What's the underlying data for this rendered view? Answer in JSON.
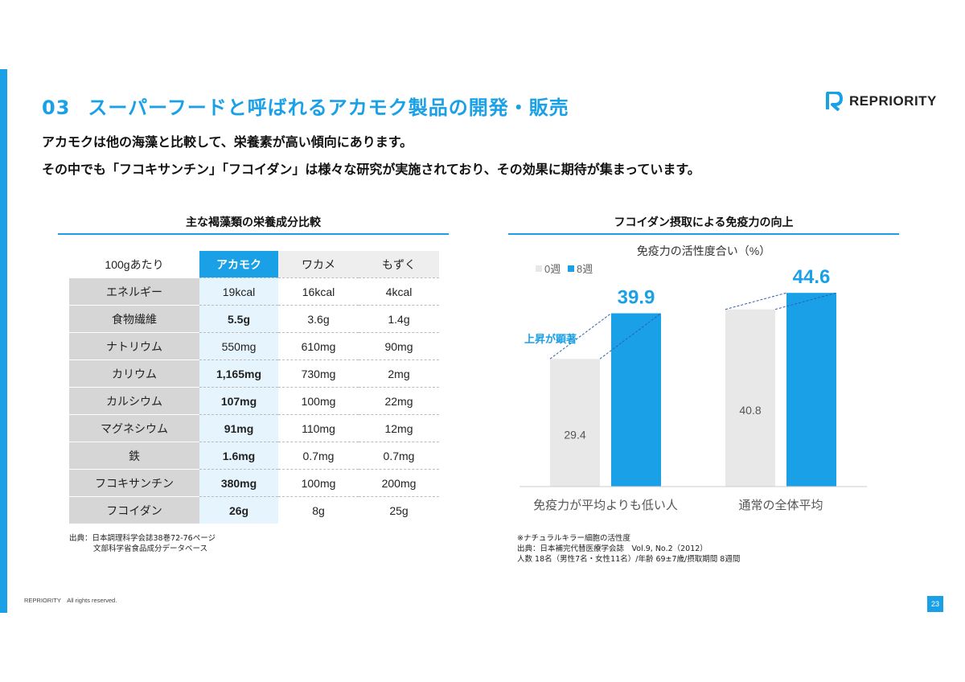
{
  "header": {
    "number": "03",
    "title": "スーパーフードと呼ばれるアカモク製品の開発・販売",
    "logo_text": "REPRIORITY",
    "brand_color": "#1aa0e6"
  },
  "lead": {
    "line1": "アカモクは他の海藻と比較して、栄養素が高い傾向にあります。",
    "line2": "その中でも「フコキサンチン」「フコイダン」は様々な研究が実施されており、その効果に期待が集まっています。"
  },
  "table_section": {
    "title": "主な褐藻類の栄養成分比較",
    "headers": [
      "100gあたり",
      "アカモク",
      "ワカメ",
      "もずく"
    ],
    "rows": [
      {
        "label": "エネルギー",
        "akamoku": "19kcal",
        "wakame": "16kcal",
        "mozuku": "4kcal",
        "bold": false
      },
      {
        "label": "食物繊維",
        "akamoku": "5.5g",
        "wakame": "3.6g",
        "mozuku": "1.4g",
        "bold": true
      },
      {
        "label": "ナトリウム",
        "akamoku": "550mg",
        "wakame": "610mg",
        "mozuku": "90mg",
        "bold": false
      },
      {
        "label": "カリウム",
        "akamoku": "1,165mg",
        "wakame": "730mg",
        "mozuku": "2mg",
        "bold": true
      },
      {
        "label": "カルシウム",
        "akamoku": "107mg",
        "wakame": "100mg",
        "mozuku": "22mg",
        "bold": true
      },
      {
        "label": "マグネシウム",
        "akamoku": "91mg",
        "wakame": "110mg",
        "mozuku": "12mg",
        "bold": true
      },
      {
        "label": "鉄",
        "akamoku": "1.6mg",
        "wakame": "0.7mg",
        "mozuku": "0.7mg",
        "bold": true
      },
      {
        "label": "フコキサンチン",
        "akamoku": "380mg",
        "wakame": "100mg",
        "mozuku": "200mg",
        "bold": true
      },
      {
        "label": "フコイダン",
        "akamoku": "26g",
        "wakame": "8g",
        "mozuku": "25g",
        "bold": true
      }
    ],
    "source_line1": "出典：日本調理科学会誌38巻72-76ページ",
    "source_line2": "文部科学省食品成分データベース"
  },
  "chart_section": {
    "title": "フコイダン摂取による免疫力の向上",
    "annotation": "上昇が顕著",
    "source_line1": "※ナチュラルキラー細胞の活性度",
    "source_line2": "出典：日本補完代替医療学会誌　Vol.9, No.2（2012）",
    "source_line3": "人数 18名（男性7名・女性11名）/年齢 69±7歳/摂取期間 8週間"
  },
  "chart_data": {
    "type": "bar",
    "title": "免疫力の活性度合い（%）",
    "categories": [
      "免疫力が平均よりも低い人",
      "通常の全体平均"
    ],
    "series": [
      {
        "name": "0週",
        "values": [
          29.4,
          40.8
        ],
        "color": "#e8e8e8"
      },
      {
        "name": "8週",
        "values": [
          39.9,
          44.6
        ],
        "color": "#1aa0e6"
      }
    ],
    "ylim": [
      0,
      50
    ],
    "legend": "top-left",
    "grid": false
  },
  "footer": {
    "copyright": "REPRIORITY　All rights reserved.",
    "page": "23"
  }
}
